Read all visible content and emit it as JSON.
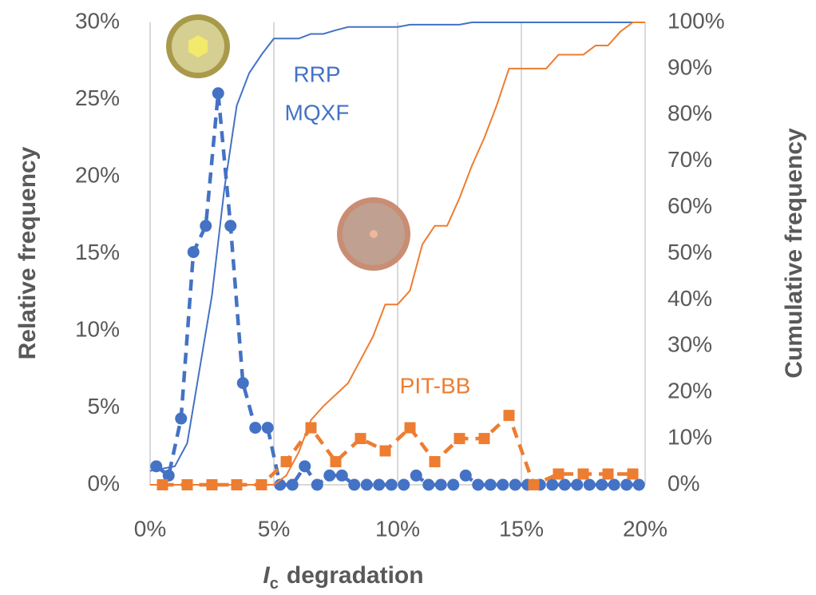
{
  "chart_data": {
    "type": "line",
    "ylabel": "Relative frequency",
    "y2label": "Cumulative frequency",
    "xlabel_symbol": "I",
    "xlabel_subscript": "c",
    "xlabel": "degradation",
    "annotations": [
      "RRP",
      "MQXF",
      "PIT-BB"
    ],
    "grid": "x",
    "xlim": [
      0,
      20
    ],
    "xticks": [
      {
        "value": 0,
        "label": "0%"
      },
      {
        "value": 5,
        "label": "5%"
      },
      {
        "value": 10,
        "label": "10%"
      },
      {
        "value": 15,
        "label": "15%"
      },
      {
        "value": 20,
        "label": "20%"
      }
    ],
    "ylim": [
      0,
      30
    ],
    "yticks": [
      {
        "value": 0,
        "label": "0%"
      },
      {
        "value": 5,
        "label": "5%"
      },
      {
        "value": 10,
        "label": "10%"
      },
      {
        "value": 15,
        "label": "15%"
      },
      {
        "value": 20,
        "label": "20%"
      },
      {
        "value": 25,
        "label": "25%"
      },
      {
        "value": 30,
        "label": "30%"
      }
    ],
    "y2lim": [
      0,
      100
    ],
    "y2ticks": [
      {
        "value": 0,
        "label": "0%"
      },
      {
        "value": 10,
        "label": "10%"
      },
      {
        "value": 20,
        "label": "20%"
      },
      {
        "value": 30,
        "label": "30%"
      },
      {
        "value": 40,
        "label": "40%"
      },
      {
        "value": 50,
        "label": "50%"
      },
      {
        "value": 60,
        "label": "60%"
      },
      {
        "value": 70,
        "label": "70%"
      },
      {
        "value": 80,
        "label": "80%"
      },
      {
        "value": 90,
        "label": "90%"
      },
      {
        "value": 100,
        "label": "100%"
      }
    ],
    "series": [
      {
        "color": "#4472c4",
        "axis": "y",
        "style": "dashed",
        "marker": "circle",
        "x": [
          0.25,
          0.75,
          1.25,
          1.75,
          2.25,
          2.75,
          3.25,
          3.75,
          4.25,
          4.75,
          5.25,
          5.75,
          6.25,
          6.75,
          7.25,
          7.75,
          8.25,
          8.75,
          9.25,
          9.75,
          10.25,
          10.75,
          11.25,
          11.75,
          12.25,
          12.75,
          13.25,
          13.75,
          14.25,
          14.75,
          15.25,
          15.75,
          16.25,
          16.75,
          17.25,
          17.75,
          18.25,
          18.75,
          19.25,
          19.75
        ],
        "values": [
          1.2,
          0.6,
          4.3,
          15.1,
          16.8,
          25.4,
          16.8,
          6.6,
          3.7,
          3.7,
          0,
          0,
          1.2,
          0,
          0.6,
          0.6,
          0,
          0,
          0,
          0,
          0,
          0.6,
          0,
          0,
          0,
          0.6,
          0,
          0,
          0,
          0,
          0,
          0,
          0,
          0,
          0,
          0,
          0,
          0,
          0,
          0
        ]
      },
      {
        "color": "#ed7d31",
        "axis": "y",
        "style": "dashed",
        "marker": "square",
        "x": [
          0.5,
          1.5,
          2.5,
          3.5,
          4.5,
          5.5,
          6.5,
          7.5,
          8.5,
          9.5,
          10.5,
          11.5,
          12.5,
          13.5,
          14.5,
          15.5,
          16.5,
          17.5,
          18.5,
          19.5
        ],
        "values": [
          0,
          0,
          0,
          0,
          0,
          1.5,
          3.7,
          1.5,
          3.0,
          2.2,
          3.7,
          1.5,
          3.0,
          3.0,
          4.5,
          0,
          0.7,
          0.7,
          0.7,
          0.7
        ]
      },
      {
        "color": "#4472c4",
        "axis": "y2",
        "style": "solid",
        "marker": "none",
        "x": [
          0,
          0.5,
          1,
          1.5,
          2,
          2.5,
          3,
          3.5,
          4,
          4.5,
          5,
          5.5,
          6,
          6.5,
          7,
          7.5,
          8,
          8.5,
          9,
          9.5,
          10,
          10.5,
          11,
          11.5,
          12,
          12.5,
          13,
          13.5,
          14,
          14.5,
          15,
          15.5,
          16,
          16.5,
          17,
          17.5,
          18,
          18.5,
          19,
          19.5,
          20
        ],
        "values": [
          3,
          3.5,
          4,
          9,
          25,
          41,
          64,
          82,
          89,
          93,
          96.5,
          96.5,
          96.5,
          97.5,
          97.5,
          98.3,
          99,
          99,
          99,
          99,
          99,
          99.5,
          99.5,
          99.5,
          99.5,
          99.5,
          100,
          100,
          100,
          100,
          100,
          100,
          100,
          100,
          100,
          100,
          100,
          100,
          100,
          100,
          100
        ]
      },
      {
        "color": "#ed7d31",
        "axis": "y2",
        "style": "solid",
        "marker": "none",
        "x": [
          0,
          0.5,
          1,
          1.5,
          2,
          2.5,
          3,
          3.5,
          4,
          4.5,
          5,
          5.5,
          6,
          6.5,
          7,
          7.5,
          8,
          8.5,
          9,
          9.5,
          10,
          10.5,
          11,
          11.5,
          12,
          12.5,
          13,
          13.5,
          14,
          14.5,
          15,
          15.5,
          16,
          16.5,
          17,
          17.5,
          18,
          18.5,
          19,
          19.5,
          20
        ],
        "values": [
          0,
          0,
          0,
          0,
          0,
          0,
          0,
          0,
          0,
          0,
          0,
          2,
          7,
          14,
          17,
          19.5,
          22,
          27,
          32,
          39,
          39,
          42,
          52,
          56,
          56,
          62,
          69,
          75,
          82,
          90,
          90,
          90,
          90,
          93,
          93,
          93,
          95,
          95,
          98,
          100,
          100
        ]
      }
    ]
  }
}
